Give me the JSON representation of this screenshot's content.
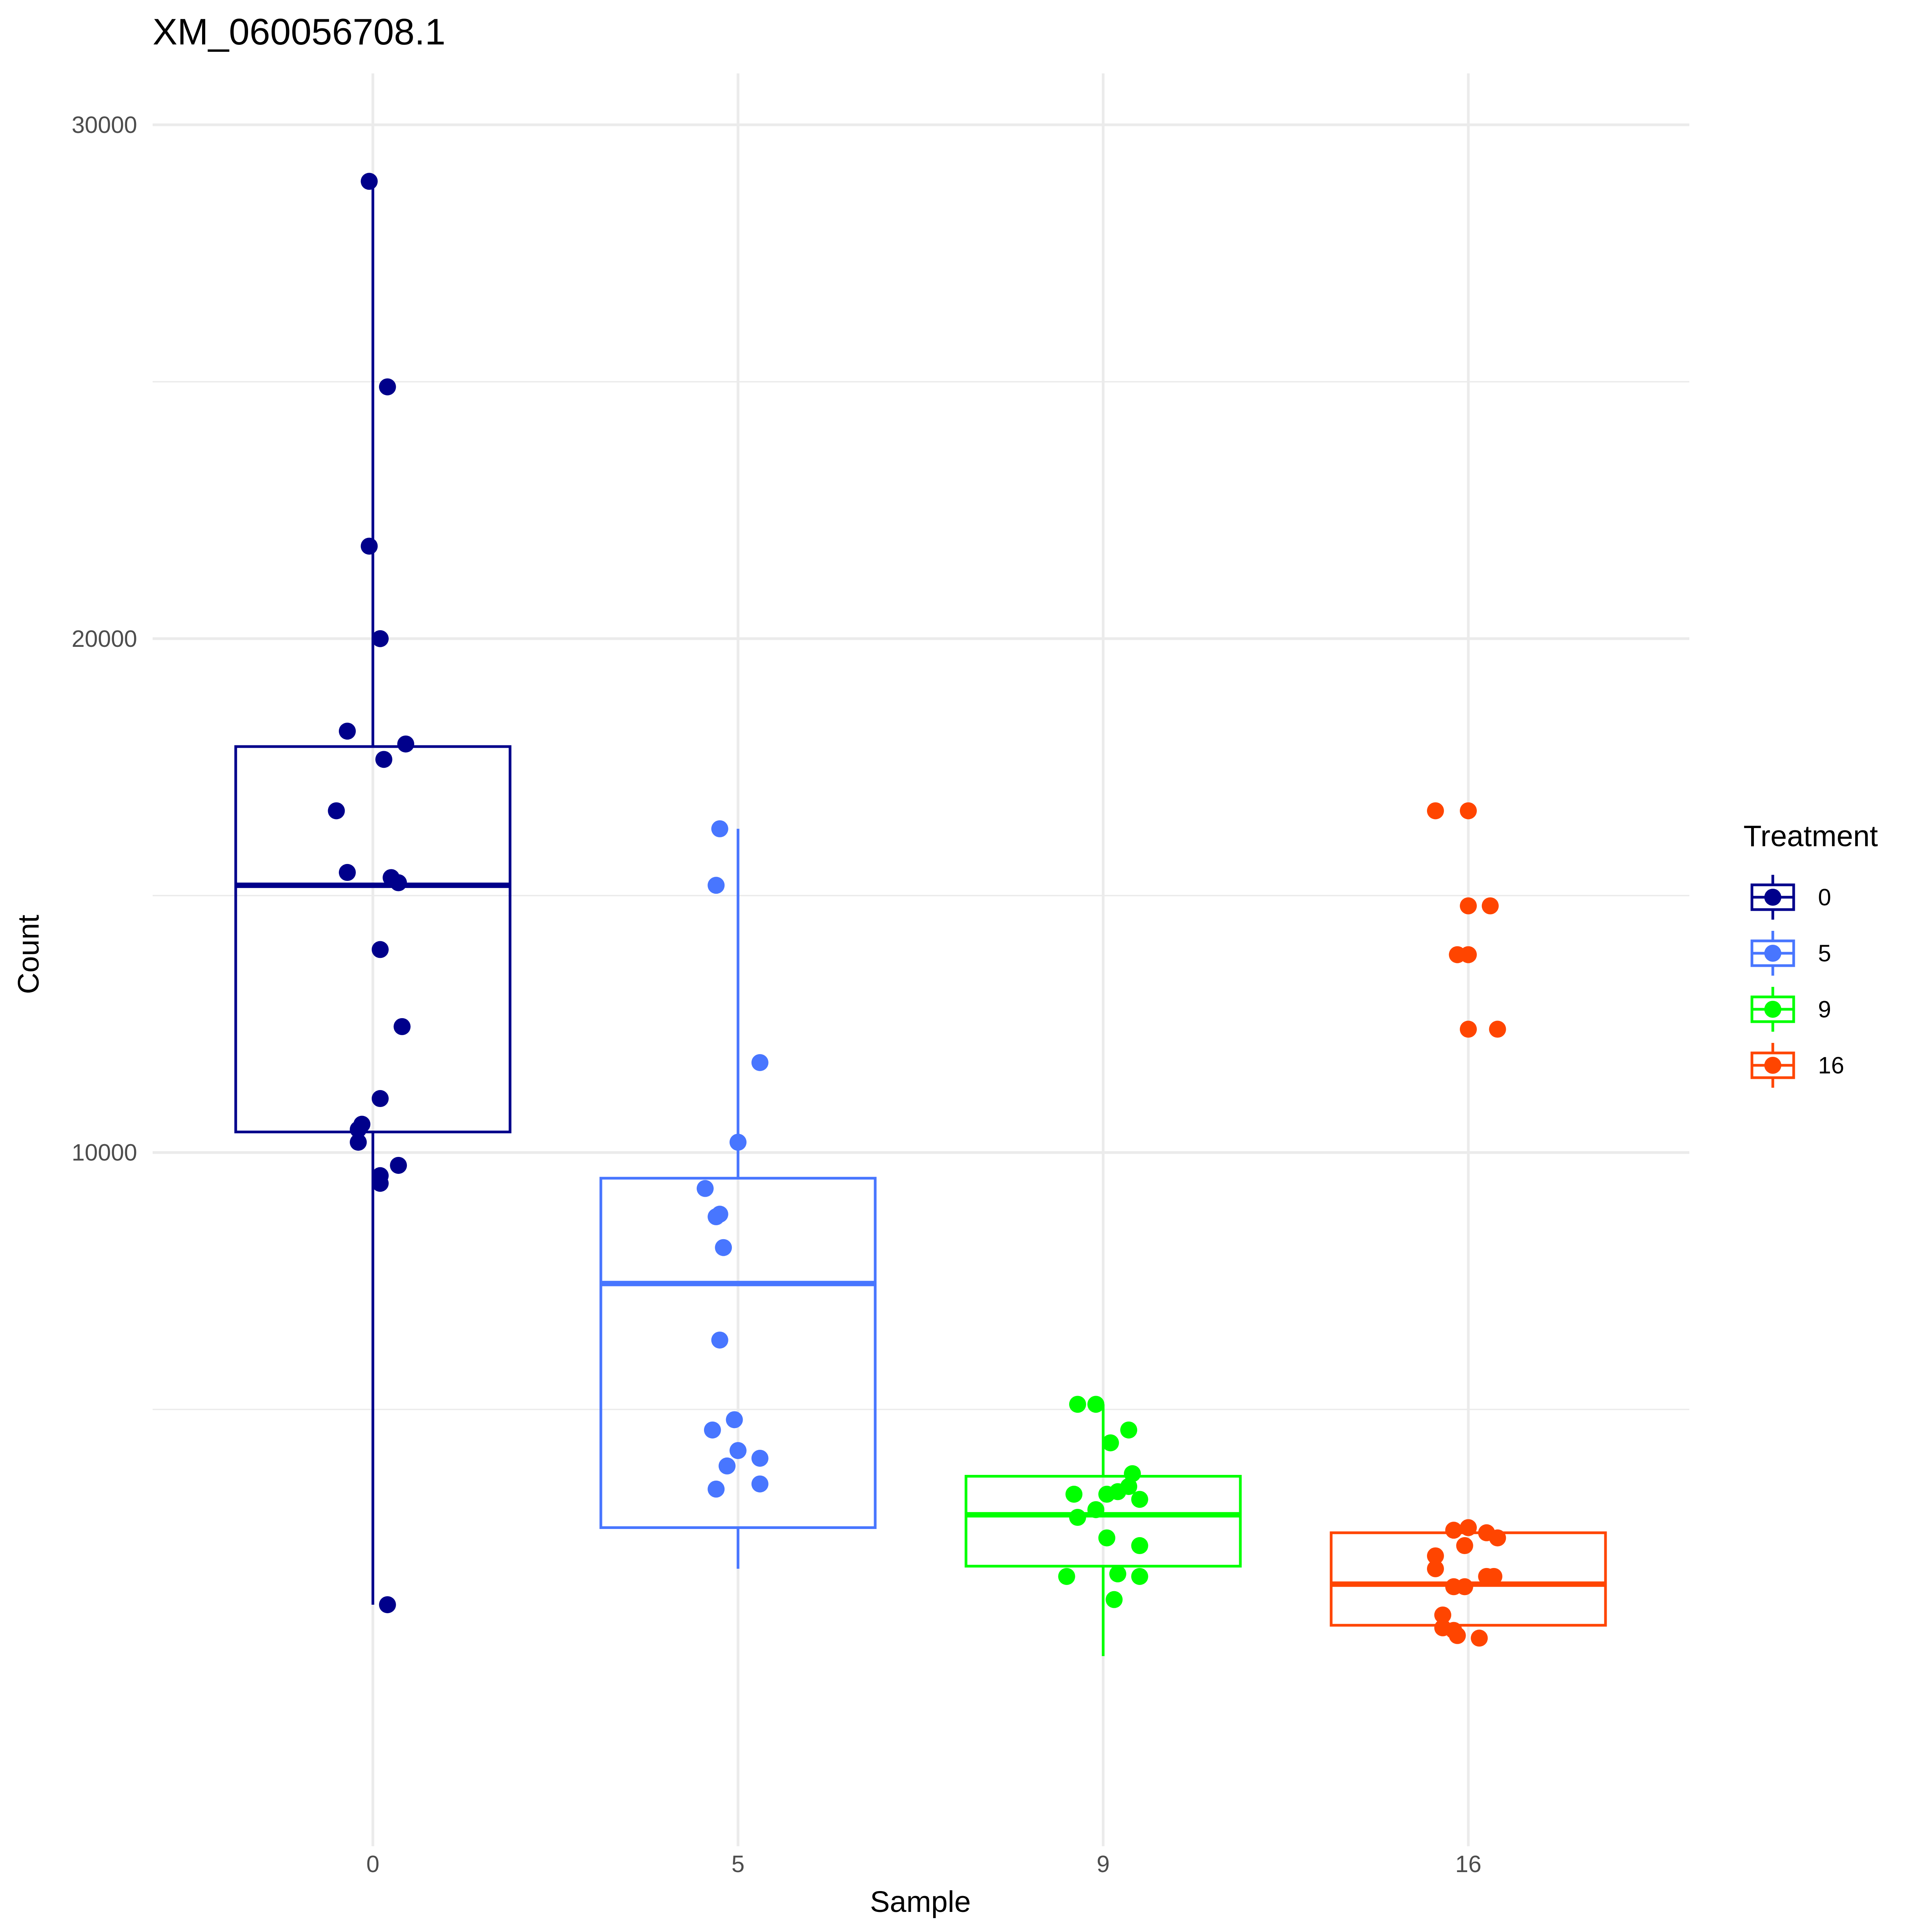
{
  "chart_data": {
    "type": "box",
    "title": "XM_060056708.1",
    "xlabel": "Sample",
    "ylabel": "Count",
    "categories": [
      "0",
      "5",
      "9",
      "16"
    ],
    "ylim": [
      -3500,
      31000
    ],
    "yticks": [
      10000,
      20000,
      30000
    ],
    "grid": true,
    "legend": {
      "title": "Treatment",
      "position": "right"
    },
    "series": [
      {
        "name": "0",
        "color": "#00008B",
        "box": {
          "lower_whisker": 1200,
          "q1": 10400,
          "median": 15200,
          "q3": 17900,
          "upper_whisker": 28900
        },
        "points": [
          {
            "dx": -0.01,
            "y": 28900
          },
          {
            "dx": 0.04,
            "y": 24900
          },
          {
            "dx": -0.01,
            "y": 21800
          },
          {
            "dx": 0.02,
            "y": 20000
          },
          {
            "dx": -0.07,
            "y": 18200
          },
          {
            "dx": 0.09,
            "y": 17950
          },
          {
            "dx": 0.03,
            "y": 17650
          },
          {
            "dx": -0.1,
            "y": 16650
          },
          {
            "dx": -0.07,
            "y": 15450
          },
          {
            "dx": 0.05,
            "y": 15350
          },
          {
            "dx": 0.07,
            "y": 15250
          },
          {
            "dx": 0.02,
            "y": 13950
          },
          {
            "dx": 0.08,
            "y": 12450
          },
          {
            "dx": 0.02,
            "y": 11050
          },
          {
            "dx": -0.03,
            "y": 10550
          },
          {
            "dx": -0.04,
            "y": 10450
          },
          {
            "dx": -0.04,
            "y": 10200
          },
          {
            "dx": 0.07,
            "y": 9750
          },
          {
            "dx": 0.02,
            "y": 9550
          },
          {
            "dx": 0.02,
            "y": 9400
          },
          {
            "dx": 0.04,
            "y": 1200
          }
        ]
      },
      {
        "name": "5",
        "color": "#4876FF",
        "box": {
          "lower_whisker": 1900,
          "q1": 2700,
          "median": 7450,
          "q3": 9500,
          "upper_whisker": 16300
        },
        "points": [
          {
            "dx": -0.05,
            "y": 16300
          },
          {
            "dx": -0.06,
            "y": 15200
          },
          {
            "dx": 0.06,
            "y": 11750
          },
          {
            "dx": 0.0,
            "y": 10200
          },
          {
            "dx": -0.09,
            "y": 9300
          },
          {
            "dx": -0.05,
            "y": 8800
          },
          {
            "dx": -0.06,
            "y": 8750
          },
          {
            "dx": -0.04,
            "y": 8150
          },
          {
            "dx": -0.05,
            "y": 6350
          },
          {
            "dx": -0.01,
            "y": 4800
          },
          {
            "dx": -0.07,
            "y": 4600
          },
          {
            "dx": 0.0,
            "y": 4200
          },
          {
            "dx": 0.06,
            "y": 4050
          },
          {
            "dx": -0.03,
            "y": 3900
          },
          {
            "dx": 0.06,
            "y": 3550
          },
          {
            "dx": -0.06,
            "y": 3450
          }
        ]
      },
      {
        "name": "9",
        "color": "#00FF00",
        "box": {
          "lower_whisker": 200,
          "q1": 1950,
          "median": 2950,
          "q3": 3700,
          "upper_whisker": 5100
        },
        "points": [
          {
            "dx": -0.07,
            "y": 5100
          },
          {
            "dx": -0.02,
            "y": 5100
          },
          {
            "dx": 0.07,
            "y": 4600
          },
          {
            "dx": 0.02,
            "y": 4350
          },
          {
            "dx": 0.08,
            "y": 3750
          },
          {
            "dx": 0.07,
            "y": 3500
          },
          {
            "dx": 0.04,
            "y": 3400
          },
          {
            "dx": 0.01,
            "y": 3350
          },
          {
            "dx": -0.08,
            "y": 3350
          },
          {
            "dx": 0.1,
            "y": 3250
          },
          {
            "dx": -0.02,
            "y": 3050
          },
          {
            "dx": -0.07,
            "y": 2900
          },
          {
            "dx": 0.01,
            "y": 2500
          },
          {
            "dx": 0.1,
            "y": 2350
          },
          {
            "dx": 0.04,
            "y": 1800
          },
          {
            "dx": -0.1,
            "y": 1750
          },
          {
            "dx": 0.1,
            "y": 1750
          },
          {
            "dx": 0.03,
            "y": 1300
          }
        ]
      },
      {
        "name": "16",
        "color": "#FF4500",
        "box": {
          "lower_whisker": 800,
          "q1": 800,
          "median": 1600,
          "q3": 2600,
          "upper_whisker": 2600
        },
        "points": [
          {
            "dx": -0.09,
            "y": 16650
          },
          {
            "dx": 0.0,
            "y": 16650
          },
          {
            "dx": 0.06,
            "y": 14800
          },
          {
            "dx": 0.0,
            "y": 14800
          },
          {
            "dx": -0.03,
            "y": 13850
          },
          {
            "dx": 0.0,
            "y": 13850
          },
          {
            "dx": 0.08,
            "y": 12400
          },
          {
            "dx": 0.0,
            "y": 12400
          },
          {
            "dx": 0.0,
            "y": 2700
          },
          {
            "dx": -0.04,
            "y": 2650
          },
          {
            "dx": 0.05,
            "y": 2600
          },
          {
            "dx": 0.08,
            "y": 2500
          },
          {
            "dx": -0.01,
            "y": 2350
          },
          {
            "dx": -0.09,
            "y": 2150
          },
          {
            "dx": -0.09,
            "y": 1900
          },
          {
            "dx": 0.07,
            "y": 1750
          },
          {
            "dx": 0.05,
            "y": 1750
          },
          {
            "dx": -0.04,
            "y": 1550
          },
          {
            "dx": -0.01,
            "y": 1550
          },
          {
            "dx": -0.07,
            "y": 1000
          },
          {
            "dx": -0.07,
            "y": 750
          },
          {
            "dx": -0.04,
            "y": 700
          },
          {
            "dx": -0.03,
            "y": 600
          },
          {
            "dx": 0.03,
            "y": 550
          }
        ]
      }
    ]
  }
}
